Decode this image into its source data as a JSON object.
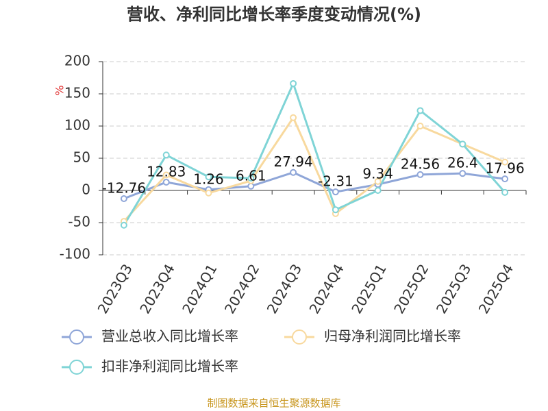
{
  "chart_data": {
    "type": "line",
    "title": "营收、净利同比增长率季度变动情况(%)",
    "y_label": "%",
    "categories": [
      "2023Q3",
      "2023Q4",
      "2024Q1",
      "2024Q2",
      "2024Q3",
      "2024Q4",
      "2025Q1",
      "2025Q2",
      "2025Q3",
      "2025Q4"
    ],
    "series": [
      {
        "name": "营业总收入同比增长率",
        "color": "#8fa6d8",
        "values": [
          -12.76,
          12.83,
          1.26,
          6.61,
          27.94,
          -2.31,
          9.34,
          24.56,
          26.4,
          17.96
        ],
        "labels": true
      },
      {
        "name": "归母净利润同比增长率",
        "color": "#f8d99e",
        "values": [
          -48,
          24,
          -4,
          15,
          113,
          -36,
          14,
          100,
          72,
          44
        ]
      },
      {
        "name": "扣非净利润同比增长率",
        "color": "#7fd4d6",
        "values": [
          -54,
          55,
          21,
          19,
          166,
          -30,
          0,
          124,
          72,
          -3
        ]
      }
    ],
    "ylim": [
      -100,
      200
    ],
    "yticks": [
      -100,
      -50,
      0,
      50,
      100,
      150,
      200
    ],
    "grid": true,
    "source": "制图数据来自恒生聚源数据库"
  }
}
